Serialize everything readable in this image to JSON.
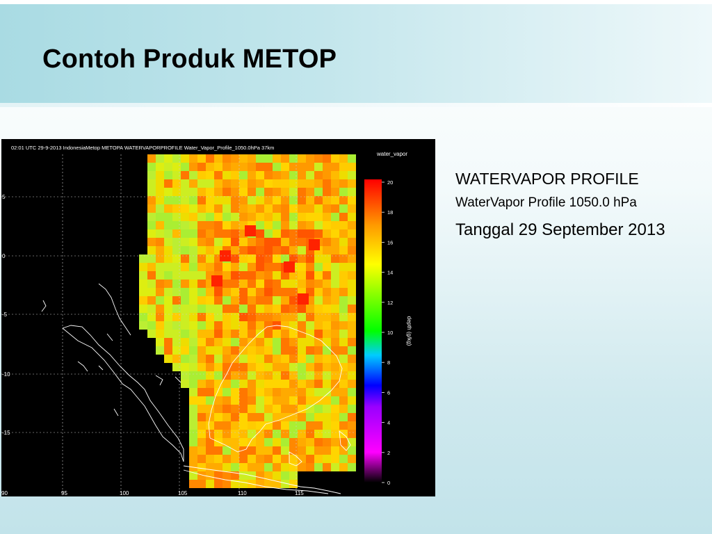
{
  "slide": {
    "title": "Contoh Produk METOP"
  },
  "map": {
    "caption": "02:01 UTC 29-9-2013 IndonesiaMetop METOPA WATERVAPORPROFILE Water_Vapor_Profile_1050.0hPa 37km",
    "variable_label": "water_vapor",
    "unit_label": "depth (g/kg)",
    "lat_ticks": [
      "5",
      "0",
      "-5",
      "-10",
      "-15"
    ],
    "lon_ticks": [
      "90",
      "95",
      "100",
      "105",
      "110",
      "115"
    ],
    "colorbar_ticks": [
      "20",
      "18",
      "16",
      "14",
      "12",
      "10",
      "8",
      "6",
      "4",
      "2",
      "0"
    ],
    "colorbar_min": 0,
    "colorbar_max": 20,
    "colors": {
      "background": "#000000",
      "coastline": "#ffffff",
      "grid": "#cccccc"
    }
  },
  "description": {
    "line1": "WATERVAPOR PROFILE",
    "line2": "WaterVapor Profile 1050.0 hPa",
    "line3": "Tanggal 29 September 2013"
  }
}
